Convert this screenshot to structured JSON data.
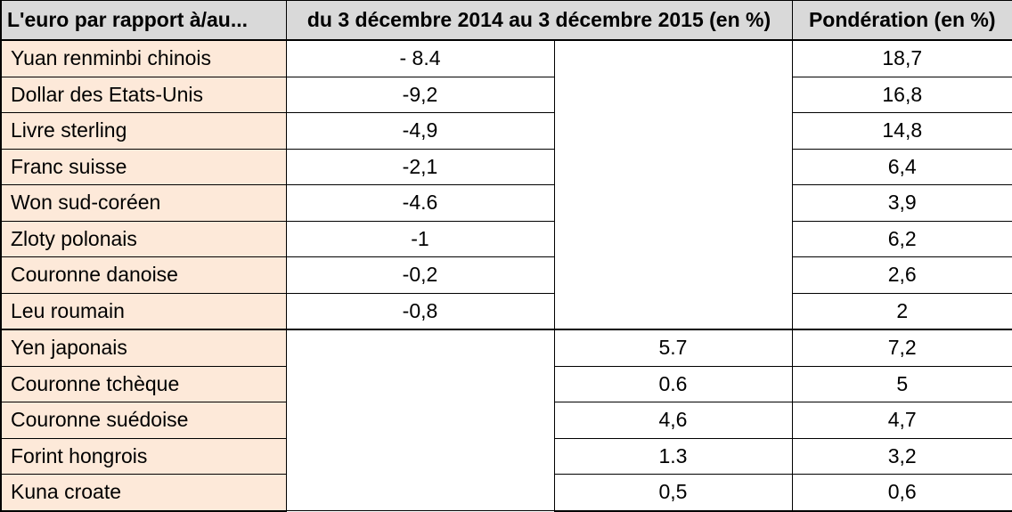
{
  "table": {
    "headers": [
      "L'euro par rapport à/au...",
      "du 3 décembre 2014 au 3 décembre 2015 (en %)",
      "Pondération (en %)"
    ],
    "group1": [
      {
        "currency": "Yuan renminbi chinois",
        "variation": "- 8.4",
        "weight": "18,7"
      },
      {
        "currency": "Dollar des Etats-Unis",
        "variation": "-9,2",
        "weight": "16,8"
      },
      {
        "currency": "Livre sterling",
        "variation": "-4,9",
        "weight": "14,8"
      },
      {
        "currency": "Franc suisse",
        "variation": "-2,1",
        "weight": "6,4"
      },
      {
        "currency": "Won sud-coréen",
        "variation": "-4.6",
        "weight": "3,9"
      },
      {
        "currency": "Zloty polonais",
        "variation": "-1",
        "weight": "6,2"
      },
      {
        "currency": "Couronne danoise",
        "variation": "-0,2",
        "weight": "2,6"
      },
      {
        "currency": "Leu roumain",
        "variation": "-0,8",
        "weight": "2"
      }
    ],
    "group2": [
      {
        "currency": "Yen japonais",
        "variation": "5.7",
        "weight": "7,2"
      },
      {
        "currency": "Couronne tchèque",
        "variation": "0.6",
        "weight": "5"
      },
      {
        "currency": "Couronne suédoise",
        "variation": "4,6",
        "weight": "4,7"
      },
      {
        "currency": "Forint hongrois",
        "variation": "1.3",
        "weight": "3,2"
      },
      {
        "currency": "Kuna croate",
        "variation": "0,5",
        "weight": "0,6"
      }
    ]
  }
}
